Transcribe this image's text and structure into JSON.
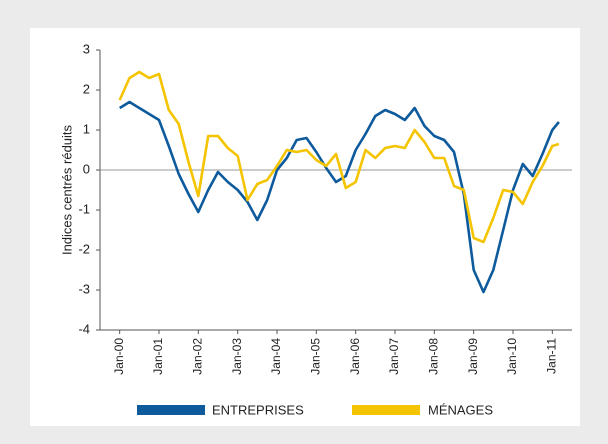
{
  "chart_data": {
    "type": "line",
    "y_label": "Indices centrés réduits",
    "x": [
      "2000-01",
      "2000-04",
      "2000-07",
      "2000-10",
      "2001-01",
      "2001-04",
      "2001-07",
      "2001-10",
      "2002-01",
      "2002-04",
      "2002-07",
      "2002-10",
      "2003-01",
      "2003-04",
      "2003-07",
      "2003-10",
      "2004-01",
      "2004-04",
      "2004-07",
      "2004-10",
      "2005-01",
      "2005-04",
      "2005-07",
      "2005-10",
      "2006-01",
      "2006-04",
      "2006-07",
      "2006-10",
      "2007-01",
      "2007-04",
      "2007-07",
      "2007-10",
      "2008-01",
      "2008-04",
      "2008-07",
      "2008-10",
      "2009-01",
      "2009-04",
      "2009-07",
      "2009-10",
      "2010-01",
      "2010-04",
      "2010-07",
      "2010-10",
      "2011-01",
      "2011-03"
    ],
    "series": [
      {
        "name": "ENTREPRISES",
        "color": "#0d5a9c",
        "values": [
          1.55,
          1.7,
          1.55,
          1.4,
          1.25,
          0.6,
          -0.1,
          -0.6,
          -1.05,
          -0.5,
          -0.05,
          -0.3,
          -0.5,
          -0.8,
          -1.25,
          -0.75,
          0.0,
          0.3,
          0.75,
          0.8,
          0.45,
          0.05,
          -0.3,
          -0.15,
          0.5,
          0.9,
          1.35,
          1.5,
          1.4,
          1.25,
          1.55,
          1.1,
          0.85,
          0.75,
          0.45,
          -0.6,
          -2.5,
          -3.05,
          -2.5,
          -1.5,
          -0.5,
          0.15,
          -0.15,
          0.4,
          1.0,
          1.2
        ]
      },
      {
        "name": "MÉNAGES",
        "color": "#f5c400",
        "values": [
          1.75,
          2.3,
          2.45,
          2.3,
          2.4,
          1.5,
          1.15,
          0.2,
          -0.65,
          0.85,
          0.85,
          0.55,
          0.35,
          -0.75,
          -0.35,
          -0.25,
          0.1,
          0.5,
          0.45,
          0.5,
          0.25,
          0.1,
          0.4,
          -0.45,
          -0.3,
          0.5,
          0.3,
          0.55,
          0.6,
          0.55,
          1.0,
          0.7,
          0.3,
          0.3,
          -0.4,
          -0.5,
          -1.7,
          -1.8,
          -1.2,
          -0.5,
          -0.55,
          -0.85,
          -0.3,
          0.1,
          0.6,
          0.65
        ]
      }
    ],
    "xlim": [
      "1999-07",
      "2011-07"
    ],
    "xticks": [
      {
        "value": "2000-01",
        "label": "Jan-00"
      },
      {
        "value": "2001-01",
        "label": "Jan-01"
      },
      {
        "value": "2002-01",
        "label": "Jan-02"
      },
      {
        "value": "2003-01",
        "label": "Jan-03"
      },
      {
        "value": "2004-01",
        "label": "Jan-04"
      },
      {
        "value": "2005-01",
        "label": "Jan-05"
      },
      {
        "value": "2006-01",
        "label": "Jan-06"
      },
      {
        "value": "2007-01",
        "label": "Jan-07"
      },
      {
        "value": "2008-01",
        "label": "Jan-08"
      },
      {
        "value": "2009-01",
        "label": "Jan-09"
      },
      {
        "value": "2010-01",
        "label": "Jan-10"
      },
      {
        "value": "2011-01",
        "label": "Jan-11"
      }
    ],
    "ylim": [
      -4,
      3
    ],
    "yticks": [
      -4,
      -3,
      -2,
      -1,
      0,
      1,
      2,
      3
    ],
    "legend": "bottom"
  }
}
